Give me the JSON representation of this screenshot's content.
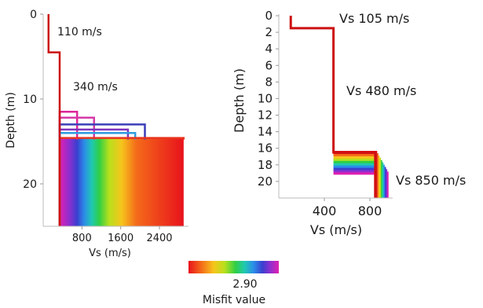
{
  "chart_data": [
    {
      "type": "line",
      "panel": "left",
      "ylabel": "Depth (m)",
      "xlabel": "Vs (m/s)",
      "xlim": [
        0,
        3000
      ],
      "ylim": [
        25,
        0
      ],
      "xticks": [
        800,
        1600,
        2400
      ],
      "yticks": [
        0,
        10,
        20
      ],
      "annotations": [
        "110 m/s",
        "340 m/s"
      ],
      "best_model": {
        "vs": [
          110,
          110,
          340,
          340
        ],
        "depth": [
          0,
          4.5,
          4.5,
          25
        ],
        "color": "#cc1111"
      },
      "halfspace_vs_spread": [
        340,
        2900
      ],
      "halfspace_top_depth": 14.6,
      "profiles": [
        {
          "layer_top": 11.5,
          "vs": 700,
          "color": "#e0259a"
        },
        {
          "layer_top": 12.2,
          "vs": 1050,
          "color": "#d53aa8"
        },
        {
          "layer_top": 13.0,
          "vs": 2100,
          "color": "#3b3fb8"
        },
        {
          "layer_top": 13.6,
          "vs": 1750,
          "color": "#7e33bb"
        },
        {
          "layer_top": 14.0,
          "vs": 1900,
          "color": "#2e9de0"
        },
        {
          "layer_top": 14.6,
          "vs": 2900,
          "color": "#e8351e"
        }
      ]
    },
    {
      "type": "line",
      "panel": "right",
      "ylabel": "Depth (m)",
      "xlabel": "Vs (m/s)",
      "xlim": [
        0,
        1000
      ],
      "ylim": [
        22,
        0
      ],
      "xticks": [
        400,
        800
      ],
      "yticks": [
        0,
        2,
        4,
        6,
        8,
        10,
        12,
        14,
        16,
        18,
        20
      ],
      "annotations": [
        "Vs 105 m/s",
        "Vs 480 m/s",
        "Vs 850 m/s"
      ],
      "best_model": {
        "vs": [
          105,
          105,
          480,
          480,
          850,
          850
        ],
        "depth": [
          0,
          1.5,
          1.5,
          16.5,
          16.5,
          22
        ],
        "color": "#cc1111"
      },
      "halfspace_vs_range": [
        850,
        950
      ],
      "halfspace_top_range": [
        16.5,
        19
      ]
    }
  ],
  "colorbar": {
    "label": "Misfit value",
    "value_label": "2.90",
    "colors": [
      "#e8121c",
      "#f46a1a",
      "#f6c51c",
      "#b8e01c",
      "#2fcf45",
      "#1fc9b0",
      "#2b8ee8",
      "#3a3fcf",
      "#8b2fd0",
      "#e01fb0"
    ]
  }
}
